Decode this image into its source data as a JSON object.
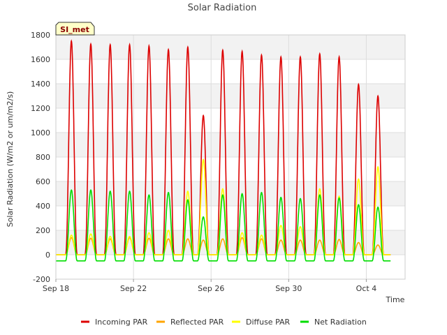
{
  "chart_data": {
    "type": "line",
    "title": "Solar Radiation",
    "xlabel": "Time",
    "ylabel": "Solar Radiation (W/m2 or um/m2/s)",
    "badge": "SI_met",
    "xlim": [
      0,
      18
    ],
    "ylim": [
      -200,
      1800
    ],
    "y_ticks": [
      -200,
      0,
      200,
      400,
      600,
      800,
      1000,
      1200,
      1400,
      1600,
      1800
    ],
    "x_ticks": [
      {
        "value": 0,
        "label": "Sep 18"
      },
      {
        "value": 4,
        "label": "Sep 22"
      },
      {
        "value": 8,
        "label": "Sep 26"
      },
      {
        "value": 12,
        "label": "Sep 30"
      },
      {
        "value": 16,
        "label": "Oct 4"
      }
    ],
    "grid": true,
    "legend_position": "bottom",
    "day_centers": [
      0.8,
      1.8,
      2.8,
      3.8,
      4.8,
      5.8,
      6.8,
      7.6,
      8.6,
      9.6,
      10.6,
      11.6,
      12.6,
      13.6,
      14.6,
      15.6,
      16.6
    ],
    "series": [
      {
        "name": "Incoming PAR",
        "color": "#dd0000",
        "night": 0,
        "peaks": [
          1750,
          1725,
          1720,
          1720,
          1710,
          1680,
          1700,
          1140,
          1675,
          1665,
          1635,
          1620,
          1620,
          1645,
          1620,
          1395,
          1300
        ]
      },
      {
        "name": "Reflected PAR",
        "color": "#ffa500",
        "night": 0,
        "peaks": [
          140,
          135,
          130,
          140,
          135,
          130,
          130,
          120,
          130,
          140,
          130,
          120,
          120,
          120,
          125,
          100,
          80
        ]
      },
      {
        "name": "Diffuse PAR",
        "color": "#ffff00",
        "night": 0,
        "peaks": [
          160,
          170,
          150,
          150,
          180,
          200,
          520,
          780,
          540,
          180,
          160,
          240,
          230,
          540,
          480,
          620,
          720
        ]
      },
      {
        "name": "Net Radiation",
        "color": "#00dd00",
        "night": -50,
        "peaks": [
          530,
          530,
          520,
          520,
          490,
          510,
          450,
          310,
          490,
          500,
          510,
          470,
          460,
          490,
          465,
          410,
          390
        ]
      }
    ]
  }
}
